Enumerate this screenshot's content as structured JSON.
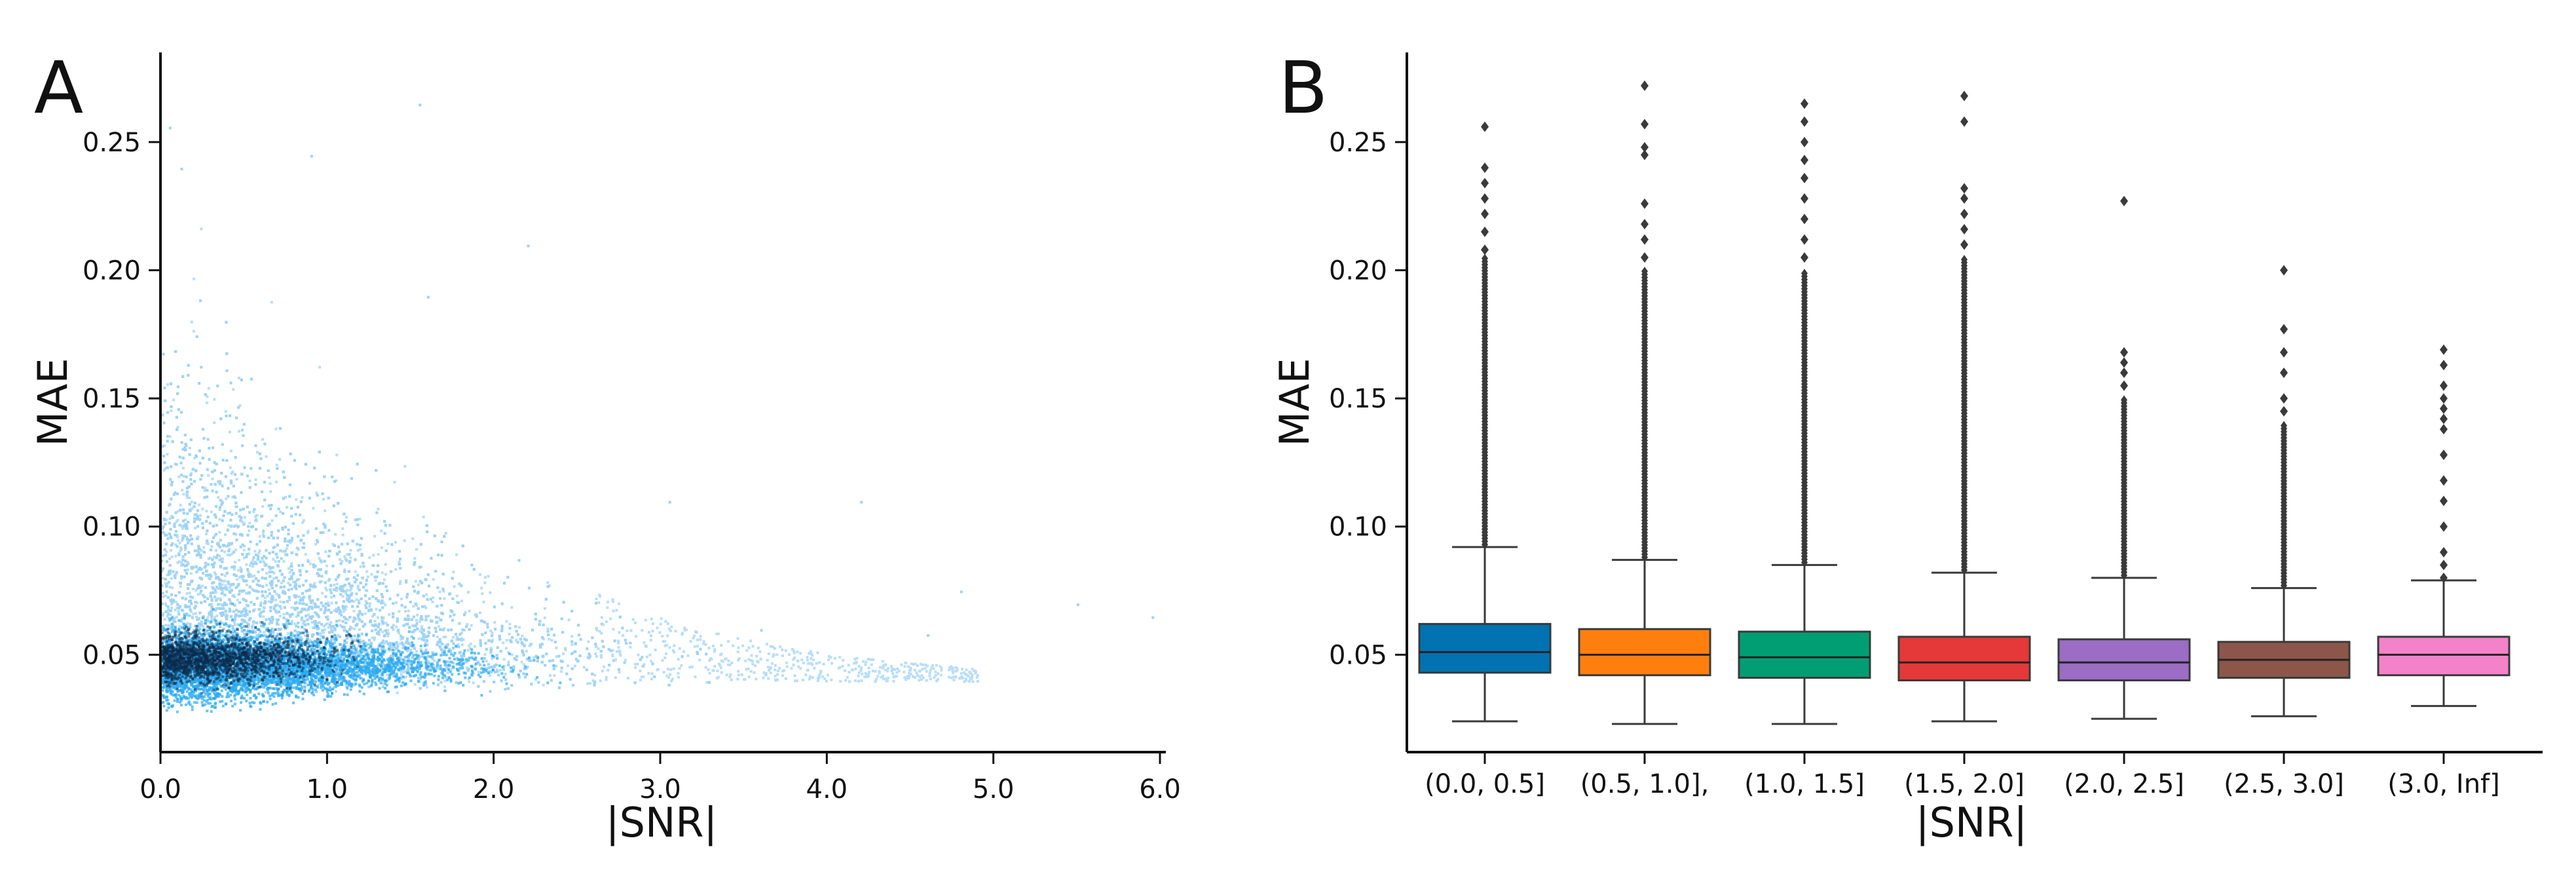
{
  "chart_data": [
    {
      "type": "scatter",
      "panel_label": "A",
      "xlabel": "|SNR|",
      "ylabel": "MAE",
      "xlim": [
        0.0,
        6.1
      ],
      "ylim": [
        0.012,
        0.285
      ],
      "x_ticks": [
        0.0,
        1.0,
        2.0,
        3.0,
        4.0,
        5.0,
        6.0
      ],
      "x_tick_labels": [
        "0.0",
        "1.0",
        "2.0",
        "3.0",
        "4.0",
        "5.0",
        "6.0"
      ],
      "y_ticks": [
        0.05,
        0.1,
        0.15,
        0.2,
        0.25
      ],
      "y_tick_labels": [
        "0.05",
        "0.10",
        "0.15",
        "0.20",
        "0.25"
      ],
      "point_color": "#2aa9ef",
      "dense_color": "#0b2a4a",
      "density_summary": {
        "cluster_center": [
          0.5,
          0.048
        ],
        "x_extent_main": [
          0.0,
          3.2
        ],
        "y_extent_main": [
          0.025,
          0.2
        ],
        "sparse_tail_x_max": 6.0
      },
      "sample_points": [
        {
          "x": 0.05,
          "y": 0.256
        },
        {
          "x": 0.12,
          "y": 0.24
        },
        {
          "x": 0.9,
          "y": 0.245
        },
        {
          "x": 1.55,
          "y": 0.265
        },
        {
          "x": 1.6,
          "y": 0.19
        },
        {
          "x": 2.2,
          "y": 0.21
        },
        {
          "x": 3.05,
          "y": 0.11
        },
        {
          "x": 3.6,
          "y": 0.06
        },
        {
          "x": 4.2,
          "y": 0.11
        },
        {
          "x": 4.6,
          "y": 0.058
        },
        {
          "x": 4.8,
          "y": 0.075
        },
        {
          "x": 5.5,
          "y": 0.07
        },
        {
          "x": 5.95,
          "y": 0.065
        }
      ]
    },
    {
      "type": "box",
      "panel_label": "B",
      "xlabel": "|SNR|",
      "ylabel": "MAE",
      "ylim": [
        0.012,
        0.285
      ],
      "y_ticks": [
        0.05,
        0.1,
        0.15,
        0.2,
        0.25
      ],
      "y_tick_labels": [
        "0.05",
        "0.10",
        "0.15",
        "0.20",
        "0.25"
      ],
      "categories": [
        "(0.0, 0.5]",
        "(0.5, 1.0],",
        "(1.0, 1.5]",
        "(1.5, 2.0]",
        "(2.0, 2.5]",
        "(2.5, 3.0]",
        "(3.0, Inf]"
      ],
      "boxes": [
        {
          "color": "#0172b2",
          "whislo": 0.024,
          "q1": 0.043,
          "med": 0.051,
          "q3": 0.062,
          "whishi": 0.092,
          "fliers_dense": [
            0.093,
            0.205
          ],
          "fliers": [
            0.208,
            0.215,
            0.222,
            0.228,
            0.234,
            0.24,
            0.256
          ]
        },
        {
          "color": "#ff7f0e",
          "whislo": 0.023,
          "q1": 0.042,
          "med": 0.05,
          "q3": 0.06,
          "whishi": 0.087,
          "fliers_dense": [
            0.088,
            0.2
          ],
          "fliers": [
            0.205,
            0.212,
            0.218,
            0.226,
            0.245,
            0.248,
            0.257,
            0.272
          ]
        },
        {
          "color": "#029e73",
          "whislo": 0.023,
          "q1": 0.041,
          "med": 0.049,
          "q3": 0.059,
          "whishi": 0.085,
          "fliers_dense": [
            0.086,
            0.2
          ],
          "fliers": [
            0.205,
            0.212,
            0.22,
            0.228,
            0.236,
            0.243,
            0.25,
            0.258,
            0.265
          ]
        },
        {
          "color": "#e53838",
          "whislo": 0.024,
          "q1": 0.04,
          "med": 0.047,
          "q3": 0.057,
          "whishi": 0.082,
          "fliers_dense": [
            0.083,
            0.205
          ],
          "fliers": [
            0.21,
            0.216,
            0.222,
            0.228,
            0.232,
            0.258,
            0.268
          ]
        },
        {
          "color": "#9b6dc5",
          "whislo": 0.025,
          "q1": 0.04,
          "med": 0.047,
          "q3": 0.056,
          "whishi": 0.08,
          "fliers_dense": [
            0.081,
            0.15
          ],
          "fliers": [
            0.155,
            0.16,
            0.164,
            0.168,
            0.227
          ]
        },
        {
          "color": "#8c564b",
          "whislo": 0.026,
          "q1": 0.041,
          "med": 0.048,
          "q3": 0.055,
          "whishi": 0.076,
          "fliers_dense": [
            0.077,
            0.14
          ],
          "fliers": [
            0.145,
            0.15,
            0.16,
            0.168,
            0.177,
            0.2
          ]
        },
        {
          "color": "#f382c9",
          "whislo": 0.03,
          "q1": 0.042,
          "med": 0.05,
          "q3": 0.057,
          "whishi": 0.079,
          "fliers_dense": [],
          "fliers": [
            0.08,
            0.085,
            0.09,
            0.1,
            0.11,
            0.118,
            0.128,
            0.138,
            0.142,
            0.146,
            0.15,
            0.155,
            0.163,
            0.169
          ]
        }
      ]
    }
  ]
}
